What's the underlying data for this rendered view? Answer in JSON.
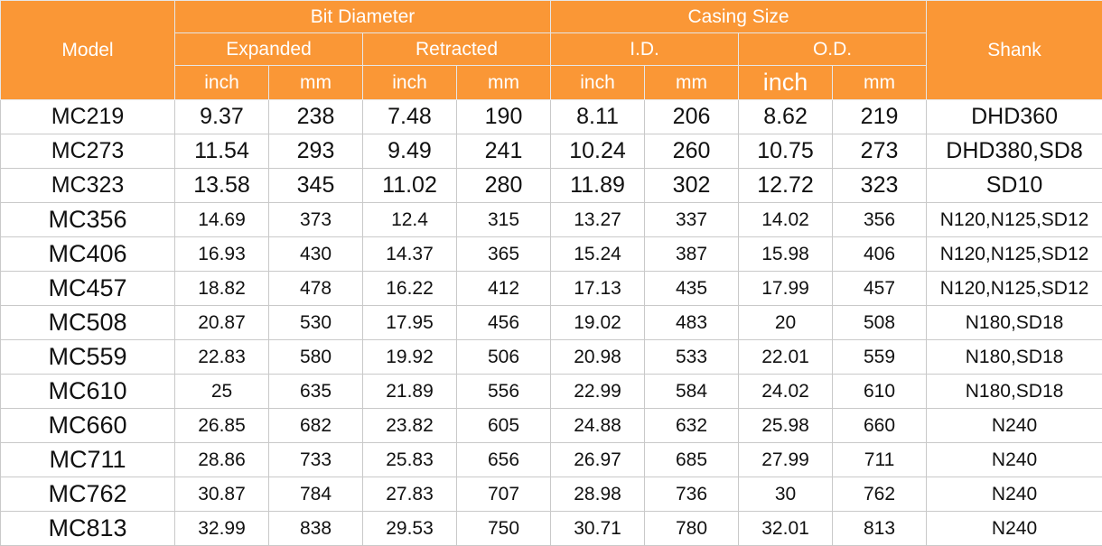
{
  "header": {
    "model": "Model",
    "bit_diameter": "Bit Diameter",
    "casing_size": "Casing Size",
    "shank": "Shank",
    "expanded": "Expanded",
    "retracted": "Retracted",
    "id": "I.D.",
    "od": "O.D.",
    "units": [
      "inch",
      "mm",
      "inch",
      "mm",
      "inch",
      "mm",
      "inch",
      "mm"
    ]
  },
  "rows": [
    [
      "MC219",
      "9.37",
      "238",
      "7.48",
      "190",
      "8.11",
      "206",
      "8.62",
      "219",
      "DHD360"
    ],
    [
      "MC273",
      "11.54",
      "293",
      "9.49",
      "241",
      "10.24",
      "260",
      "10.75",
      "273",
      "DHD380,SD8"
    ],
    [
      "MC323",
      "13.58",
      "345",
      "11.02",
      "280",
      "11.89",
      "302",
      "12.72",
      "323",
      "SD10"
    ],
    [
      "MC356",
      "14.69",
      "373",
      "12.4",
      "315",
      "13.27",
      "337",
      "14.02",
      "356",
      "N120,N125,SD12"
    ],
    [
      "MC406",
      "16.93",
      "430",
      "14.37",
      "365",
      "15.24",
      "387",
      "15.98",
      "406",
      "N120,N125,SD12"
    ],
    [
      "MC457",
      "18.82",
      "478",
      "16.22",
      "412",
      "17.13",
      "435",
      "17.99",
      "457",
      "N120,N125,SD12"
    ],
    [
      "MC508",
      "20.87",
      "530",
      "17.95",
      "456",
      "19.02",
      "483",
      "20",
      "508",
      "N180,SD18"
    ],
    [
      "MC559",
      "22.83",
      "580",
      "19.92",
      "506",
      "20.98",
      "533",
      "22.01",
      "559",
      "N180,SD18"
    ],
    [
      "MC610",
      "25",
      "635",
      "21.89",
      "556",
      "22.99",
      "584",
      "24.02",
      "610",
      "N180,SD18"
    ],
    [
      "MC660",
      "26.85",
      "682",
      "23.82",
      "605",
      "24.88",
      "632",
      "25.98",
      "660",
      "N240"
    ],
    [
      "MC711",
      "28.86",
      "733",
      "25.83",
      "656",
      "26.97",
      "685",
      "27.99",
      "711",
      "N240"
    ],
    [
      "MC762",
      "30.87",
      "784",
      "27.83",
      "707",
      "28.98",
      "736",
      "30",
      "762",
      "N240"
    ],
    [
      "MC813",
      "32.99",
      "838",
      "29.53",
      "750",
      "30.71",
      "780",
      "32.01",
      "813",
      "N240"
    ]
  ],
  "colors": {
    "header_bg": "#fa9736",
    "header_text": "#ffffff",
    "grid": "#c9c9c9"
  }
}
